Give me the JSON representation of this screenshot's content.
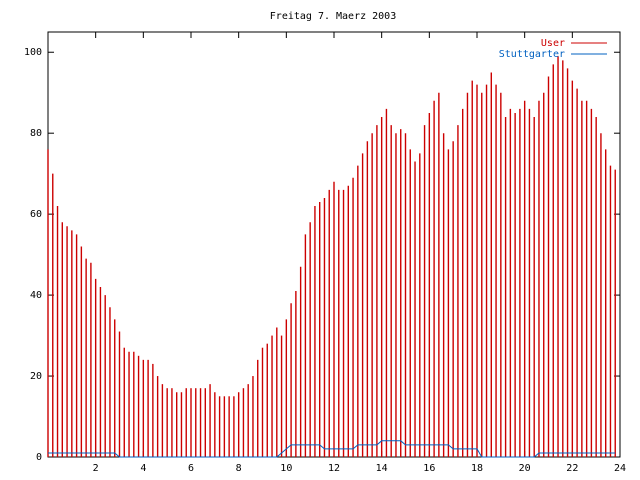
{
  "chart_data": {
    "type": "impulse",
    "title": "Freitag 7. Maerz 2003",
    "x": [
      0,
      0.2,
      0.4,
      0.6,
      0.8,
      1,
      1.2,
      1.4,
      1.6,
      1.8,
      2,
      2.2,
      2.4,
      2.6,
      2.8,
      3,
      3.2,
      3.4,
      3.6,
      3.8,
      4,
      4.2,
      4.4,
      4.6,
      4.8,
      5,
      5.2,
      5.4,
      5.6,
      5.8,
      6,
      6.2,
      6.4,
      6.6,
      6.8,
      7,
      7.2,
      7.4,
      7.6,
      7.8,
      8,
      8.2,
      8.4,
      8.6,
      8.8,
      9,
      9.2,
      9.4,
      9.6,
      9.8,
      10,
      10.2,
      10.4,
      10.6,
      10.8,
      11,
      11.2,
      11.4,
      11.6,
      11.8,
      12,
      12.2,
      12.4,
      12.6,
      12.8,
      13,
      13.2,
      13.4,
      13.6,
      13.8,
      14,
      14.2,
      14.4,
      14.6,
      14.8,
      15,
      15.2,
      15.4,
      15.6,
      15.8,
      16,
      16.2,
      16.4,
      16.6,
      16.8,
      17,
      17.2,
      17.4,
      17.6,
      17.8,
      18,
      18.2,
      18.4,
      18.6,
      18.8,
      19,
      19.2,
      19.4,
      19.6,
      19.8,
      20,
      20.2,
      20.4,
      20.6,
      20.8,
      21,
      21.2,
      21.4,
      21.6,
      21.8,
      22,
      22.2,
      22.4,
      22.6,
      22.8,
      23,
      23.2,
      23.4,
      23.6,
      23.8
    ],
    "series": [
      {
        "name": "User",
        "color": "#cc0000",
        "style": "impulses",
        "values": [
          76,
          70,
          62,
          58,
          57,
          56,
          55,
          52,
          49,
          48,
          44,
          42,
          40,
          37,
          34,
          31,
          27,
          26,
          26,
          25,
          24,
          24,
          23,
          20,
          18,
          17,
          17,
          16,
          16,
          17,
          17,
          17,
          17,
          17,
          18,
          16,
          15,
          15,
          15,
          15,
          16,
          17,
          18,
          20,
          24,
          27,
          28,
          30,
          32,
          30,
          34,
          38,
          41,
          47,
          55,
          58,
          62,
          63,
          64,
          66,
          68,
          66,
          66,
          67,
          69,
          72,
          75,
          78,
          80,
          82,
          84,
          86,
          82,
          80,
          81,
          80,
          76,
          73,
          75,
          82,
          85,
          88,
          90,
          80,
          76,
          78,
          82,
          86,
          90,
          93,
          92,
          90,
          92,
          95,
          92,
          90,
          84,
          86,
          85,
          86,
          88,
          86,
          84,
          88,
          90,
          94,
          97,
          99,
          98,
          96,
          93,
          91,
          88,
          88,
          86,
          84,
          80,
          76,
          72,
          71
        ]
      },
      {
        "name": "Stuttgarter",
        "color": "#0060c0",
        "style": "line",
        "values": [
          1,
          1,
          1,
          1,
          1,
          1,
          1,
          1,
          1,
          1,
          1,
          1,
          1,
          1,
          1,
          0,
          0,
          0,
          0,
          0,
          0,
          0,
          0,
          0,
          0,
          0,
          0,
          0,
          0,
          0,
          0,
          0,
          0,
          0,
          0,
          0,
          0,
          0,
          0,
          0,
          0,
          0,
          0,
          0,
          0,
          0,
          0,
          0,
          0,
          1,
          2,
          3,
          3,
          3,
          3,
          3,
          3,
          3,
          2,
          2,
          2,
          2,
          2,
          2,
          2,
          3,
          3,
          3,
          3,
          3,
          4,
          4,
          4,
          4,
          4,
          3,
          3,
          3,
          3,
          3,
          3,
          3,
          3,
          3,
          3,
          2,
          2,
          2,
          2,
          2,
          2,
          0,
          0,
          0,
          0,
          0,
          0,
          0,
          0,
          0,
          0,
          0,
          0,
          1,
          1,
          1,
          1,
          1,
          1,
          1,
          1,
          1,
          1,
          1,
          1,
          1,
          1,
          1,
          1,
          1
        ]
      }
    ],
    "xlim": [
      0,
      24
    ],
    "xticks": [
      2,
      4,
      6,
      8,
      10,
      12,
      14,
      16,
      18,
      20,
      22,
      24
    ],
    "ylim": [
      0,
      105
    ],
    "yticks": [
      0,
      20,
      40,
      60,
      80,
      100
    ],
    "legend": "top-right"
  }
}
